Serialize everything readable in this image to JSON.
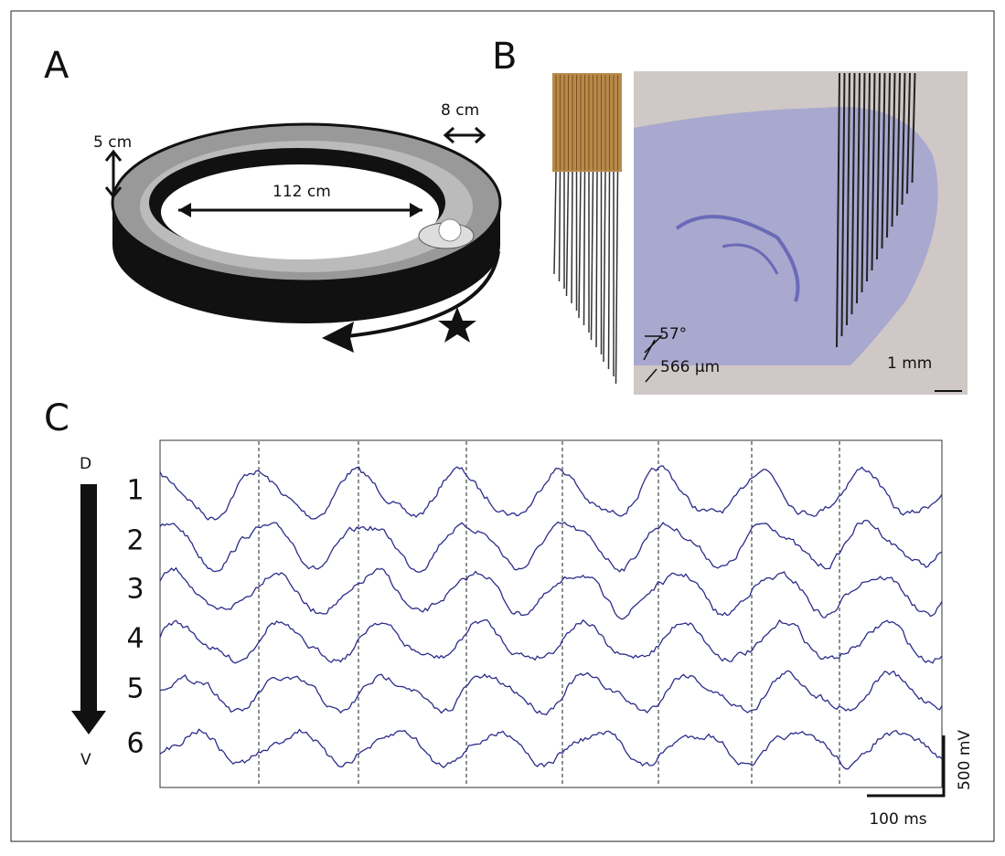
{
  "panel_a": {
    "label": "A",
    "height": "5 cm",
    "width": "8 cm",
    "diameter": "112 cm"
  },
  "panel_b": {
    "label": "B",
    "angle": "57°",
    "spacing": "566 µm",
    "scale": "1 mm"
  },
  "panel_c": {
    "label": "C",
    "top": "D",
    "bottom": "V",
    "channels": [
      "1",
      "2",
      "3",
      "4",
      "5",
      "6"
    ],
    "amplitude_scale": "500 mV",
    "time_scale": "100 ms"
  }
}
